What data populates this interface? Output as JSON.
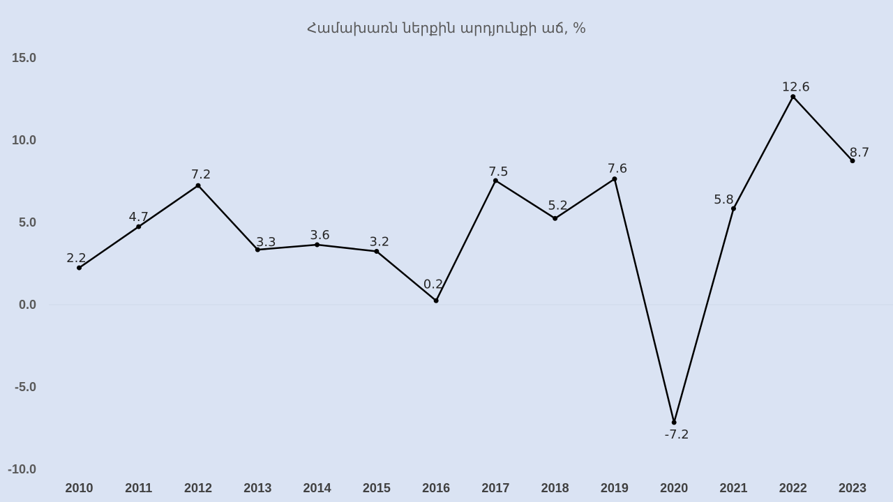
{
  "chart_data": {
    "type": "line",
    "title": "Համախառն ներքին արդյունքի աճ, %",
    "xlabel": "",
    "ylabel": "",
    "categories": [
      "2010",
      "2011",
      "2012",
      "2013",
      "2014",
      "2015",
      "2016",
      "2017",
      "2018",
      "2019",
      "2020",
      "2021",
      "2022",
      "2023"
    ],
    "series": [
      {
        "values": [
          2.2,
          4.7,
          7.2,
          3.3,
          3.6,
          3.2,
          0.2,
          7.5,
          5.2,
          7.6,
          -7.2,
          5.8,
          12.6,
          8.7
        ],
        "labels": [
          "2.2",
          "4.7",
          "7.2",
          "3.3",
          "3.6",
          "3.2",
          "0.2",
          "7.5",
          "5.2",
          "7.6",
          "-7.2",
          "5.8",
          "12.6",
          "8.7"
        ],
        "color": "#000000"
      }
    ],
    "highlight_label_color": "#ff0000",
    "highlight_index": 13,
    "ylim": [
      -10,
      15
    ],
    "yticks": [
      "15.0",
      "10.0",
      "5.0",
      "0.0",
      "-5.0",
      "-10.0"
    ],
    "grid": false,
    "legend": "none"
  }
}
